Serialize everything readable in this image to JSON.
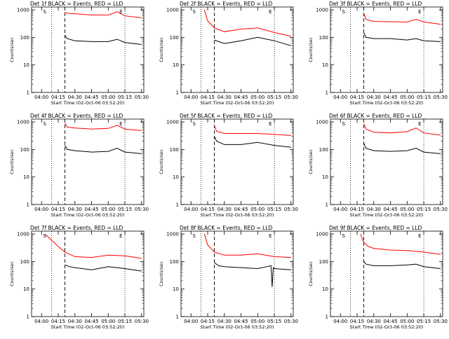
{
  "figure": {
    "ylabel": "Counts/sec",
    "xlabel": "Start Time (02-Oct-06 03:52:20)",
    "marker_S": "S",
    "marker_E": "E",
    "colors": {
      "events": "#000000",
      "lld": "#ff0000"
    }
  },
  "chart_data": [
    {
      "type": "line",
      "title": "Det 1f BLACK = Events, RED = LLD",
      "x_ticks": [
        "04:00",
        "04:15",
        "04:30",
        "04:45",
        "05:00",
        "05:15",
        "05:30"
      ],
      "y_ticks": [
        "1",
        "10",
        "100",
        "1000"
      ],
      "ylim": [
        1,
        1000
      ],
      "yscale": "log",
      "markers": {
        "dotted": [
          "04:09",
          "05:15"
        ],
        "dashed": [
          "04:21"
        ]
      },
      "series": [
        {
          "name": "LLD",
          "x": [
            "04:21",
            "04:23",
            "04:30",
            "04:45",
            "05:00",
            "05:08",
            "05:15",
            "05:30"
          ],
          "values": [
            800,
            750,
            720,
            650,
            650,
            850,
            600,
            520
          ]
        },
        {
          "name": "Events",
          "x": [
            "04:21",
            "04:23",
            "04:30",
            "04:45",
            "05:00",
            "05:08",
            "05:15",
            "05:30"
          ],
          "values": [
            120,
            90,
            75,
            70,
            70,
            85,
            65,
            55
          ]
        }
      ]
    },
    {
      "type": "line",
      "title": "Det 2f BLACK = Events, RED = LLD",
      "x_ticks": [
        "04:00",
        "04:15",
        "04:30",
        "04:45",
        "05:00",
        "05:15",
        "05:30"
      ],
      "y_ticks": [
        "1",
        "10",
        "100",
        "1000"
      ],
      "ylim": [
        1,
        1000
      ],
      "yscale": "log",
      "markers": {
        "dotted": [
          "04:09",
          "05:15"
        ],
        "dashed": [
          "04:21"
        ]
      },
      "series": [
        {
          "name": "LLD",
          "x": [
            "04:12",
            "04:15",
            "04:21",
            "04:30",
            "04:45",
            "05:00",
            "05:15",
            "05:30"
          ],
          "values": [
            1000,
            400,
            220,
            160,
            200,
            220,
            150,
            110
          ]
        },
        {
          "name": "Events",
          "x": [
            "04:21",
            "04:25",
            "04:30",
            "04:45",
            "05:00",
            "05:15",
            "05:30"
          ],
          "values": [
            80,
            70,
            60,
            75,
            100,
            75,
            50
          ]
        }
      ]
    },
    {
      "type": "line",
      "title": "Det 3f BLACK = Events, RED = LLD",
      "x_ticks": [
        "04:00",
        "04:15",
        "04:30",
        "04:45",
        "05:00",
        "05:15",
        "05:30"
      ],
      "y_ticks": [
        "1",
        "10",
        "100",
        "1000"
      ],
      "ylim": [
        1,
        1000
      ],
      "yscale": "log",
      "markers": {
        "dotted": [
          "04:09",
          "05:15"
        ],
        "dashed": [
          "04:21"
        ]
      },
      "series": [
        {
          "name": "LLD",
          "x": [
            "04:21",
            "04:23",
            "04:30",
            "04:45",
            "05:00",
            "05:08",
            "05:15",
            "05:30"
          ],
          "values": [
            750,
            450,
            380,
            370,
            360,
            450,
            360,
            300
          ]
        },
        {
          "name": "Events",
          "x": [
            "04:21",
            "04:23",
            "04:30",
            "04:45",
            "05:00",
            "05:08",
            "05:15",
            "05:30"
          ],
          "values": [
            150,
            100,
            90,
            90,
            80,
            90,
            75,
            70
          ]
        }
      ]
    },
    {
      "type": "line",
      "title": "Det 4f BLACK = Events, RED = LLD",
      "x_ticks": [
        "04:00",
        "04:15",
        "04:30",
        "04:45",
        "05:00",
        "05:15",
        "05:30"
      ],
      "y_ticks": [
        "1",
        "10",
        "100",
        "1000"
      ],
      "ylim": [
        1,
        1000
      ],
      "yscale": "log",
      "markers": {
        "dotted": [
          "04:09",
          "05:15"
        ],
        "dashed": [
          "04:21"
        ]
      },
      "series": [
        {
          "name": "LLD",
          "x": [
            "04:21",
            "04:23",
            "04:30",
            "04:45",
            "05:00",
            "05:08",
            "05:15",
            "05:30"
          ],
          "values": [
            900,
            650,
            600,
            550,
            580,
            750,
            550,
            480
          ]
        },
        {
          "name": "Events",
          "x": [
            "04:21",
            "04:23",
            "04:30",
            "04:45",
            "05:00",
            "05:08",
            "05:15",
            "05:30"
          ],
          "values": [
            140,
            100,
            90,
            80,
            85,
            110,
            80,
            70
          ]
        }
      ]
    },
    {
      "type": "line",
      "title": "Det 5f BLACK = Events, RED = LLD",
      "x_ticks": [
        "04:00",
        "04:15",
        "04:30",
        "04:45",
        "05:00",
        "05:15",
        "05:30"
      ],
      "y_ticks": [
        "1",
        "10",
        "100",
        "1000"
      ],
      "ylim": [
        1,
        1000
      ],
      "yscale": "log",
      "markers": {
        "dotted": [
          "04:09",
          "05:15"
        ],
        "dashed": [
          "04:21"
        ]
      },
      "series": [
        {
          "name": "LLD",
          "x": [
            "04:21",
            "04:23",
            "04:30",
            "04:45",
            "05:00",
            "05:15",
            "05:30"
          ],
          "values": [
            750,
            450,
            380,
            380,
            380,
            350,
            320
          ]
        },
        {
          "name": "Events",
          "x": [
            "04:21",
            "04:23",
            "04:30",
            "04:45",
            "05:00",
            "05:15",
            "05:30"
          ],
          "values": [
            300,
            200,
            150,
            150,
            180,
            140,
            120
          ]
        }
      ]
    },
    {
      "type": "line",
      "title": "Det 6f BLACK = Events, RED = LLD",
      "x_ticks": [
        "04:00",
        "04:15",
        "04:30",
        "04:45",
        "05:00",
        "05:15",
        "05:30"
      ],
      "y_ticks": [
        "1",
        "10",
        "100",
        "1000"
      ],
      "ylim": [
        1,
        1000
      ],
      "yscale": "log",
      "markers": {
        "dotted": [
          "04:09",
          "05:15"
        ],
        "dashed": [
          "04:21"
        ]
      },
      "series": [
        {
          "name": "LLD",
          "x": [
            "04:21",
            "04:23",
            "04:30",
            "04:45",
            "05:00",
            "05:08",
            "05:15",
            "05:30"
          ],
          "values": [
            850,
            550,
            420,
            400,
            440,
            600,
            400,
            330
          ]
        },
        {
          "name": "Events",
          "x": [
            "04:21",
            "04:23",
            "04:30",
            "04:45",
            "05:00",
            "05:08",
            "05:15",
            "05:30"
          ],
          "values": [
            170,
            110,
            90,
            85,
            90,
            110,
            80,
            70
          ]
        }
      ]
    },
    {
      "type": "line",
      "title": "Det 7f BLACK = Events, RED = LLD",
      "x_ticks": [
        "04:00",
        "04:15",
        "04:30",
        "04:45",
        "05:00",
        "05:15",
        "05:30"
      ],
      "y_ticks": [
        "1",
        "10",
        "100",
        "1000"
      ],
      "ylim": [
        1,
        1000
      ],
      "yscale": "log",
      "markers": {
        "dotted": [
          "04:09",
          "05:15"
        ],
        "dashed": [
          "04:21"
        ]
      },
      "series": [
        {
          "name": "LLD",
          "x": [
            "04:03",
            "04:15",
            "04:21",
            "04:30",
            "04:45",
            "05:00",
            "05:15",
            "05:30"
          ],
          "values": [
            1000,
            350,
            220,
            150,
            140,
            170,
            160,
            130
          ]
        },
        {
          "name": "Events",
          "x": [
            "04:21",
            "04:25",
            "04:30",
            "04:45",
            "05:00",
            "05:15",
            "05:30"
          ],
          "values": [
            75,
            65,
            60,
            50,
            65,
            55,
            45
          ]
        }
      ]
    },
    {
      "type": "line",
      "title": "Det 8f BLACK = Events, RED = LLD",
      "x_ticks": [
        "04:00",
        "04:15",
        "04:30",
        "04:45",
        "05:00",
        "05:15",
        "05:30"
      ],
      "y_ticks": [
        "1",
        "10",
        "100",
        "1000"
      ],
      "ylim": [
        1,
        1000
      ],
      "yscale": "log",
      "markers": {
        "dotted": [
          "04:09",
          "05:15"
        ],
        "dashed": [
          "04:21"
        ]
      },
      "series": [
        {
          "name": "LLD",
          "x": [
            "04:12",
            "04:15",
            "04:21",
            "04:30",
            "04:45",
            "05:00",
            "05:15",
            "05:30"
          ],
          "values": [
            1000,
            400,
            220,
            170,
            170,
            190,
            150,
            140
          ]
        },
        {
          "name": "Events",
          "x": [
            "04:21",
            "04:25",
            "04:30",
            "04:45",
            "05:00",
            "05:12",
            "05:13",
            "05:14",
            "05:15",
            "05:30"
          ],
          "values": [
            90,
            70,
            65,
            60,
            55,
            70,
            12,
            60,
            55,
            50
          ]
        }
      ]
    },
    {
      "type": "line",
      "title": "Det 9f BLACK = Events, RED = LLD",
      "x_ticks": [
        "04:00",
        "04:15",
        "04:30",
        "04:45",
        "05:00",
        "05:15",
        "05:30"
      ],
      "y_ticks": [
        "1",
        "10",
        "100",
        "1000"
      ],
      "ylim": [
        1,
        1000
      ],
      "yscale": "log",
      "markers": {
        "dotted": [
          "04:09",
          "05:15"
        ],
        "dashed": [
          "04:21"
        ]
      },
      "series": [
        {
          "name": "LLD",
          "x": [
            "04:18",
            "04:21",
            "04:25",
            "04:30",
            "04:45",
            "05:00",
            "05:15",
            "05:30"
          ],
          "values": [
            1000,
            500,
            350,
            300,
            260,
            250,
            220,
            180
          ]
        },
        {
          "name": "Events",
          "x": [
            "04:21",
            "04:23",
            "04:30",
            "04:45",
            "05:00",
            "05:08",
            "05:15",
            "05:30"
          ],
          "values": [
            100,
            80,
            70,
            70,
            75,
            80,
            65,
            55
          ]
        }
      ]
    }
  ]
}
